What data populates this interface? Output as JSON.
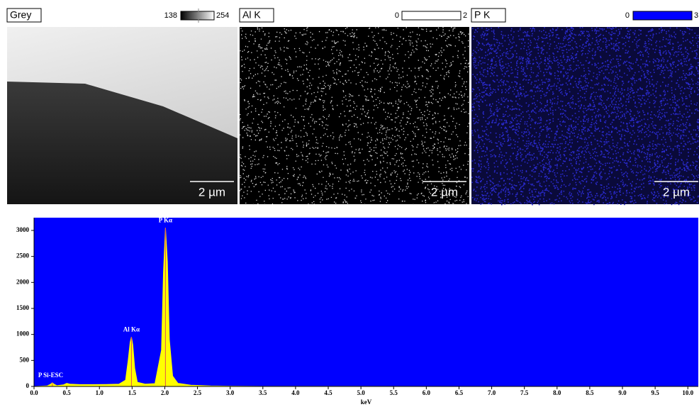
{
  "panels": [
    {
      "label": "Grey",
      "min": 138,
      "max": 254,
      "scale": "2 µm"
    },
    {
      "label": "Al K",
      "min": 0,
      "max": 2,
      "scale": "2 µm"
    },
    {
      "label": "P K",
      "min": 0,
      "max": 3,
      "scale": "2 µm"
    }
  ],
  "chart_data": {
    "type": "area",
    "color": "#ffff00",
    "background": "#0000ff",
    "x_label": "keV",
    "x": [
      0.0,
      0.1,
      0.2,
      0.25,
      0.28,
      0.31,
      0.35,
      0.45,
      0.5,
      0.55,
      0.7,
      0.9,
      1.1,
      1.3,
      1.4,
      1.44,
      1.47,
      1.49,
      1.51,
      1.54,
      1.58,
      1.7,
      1.85,
      1.95,
      1.98,
      2.01,
      2.04,
      2.07,
      2.12,
      2.2,
      2.4,
      2.7,
      3.0,
      3.5,
      9.0
    ],
    "values": [
      0,
      5,
      10,
      40,
      70,
      40,
      15,
      30,
      60,
      45,
      35,
      35,
      38,
      45,
      120,
      500,
      850,
      950,
      800,
      350,
      80,
      45,
      55,
      700,
      2200,
      3050,
      2400,
      900,
      200,
      60,
      25,
      10,
      5,
      2,
      0
    ],
    "annotations": [
      {
        "text": "P Kα",
        "x": 2.01
      },
      {
        "text": "Al Kα",
        "x": 1.49
      },
      {
        "text": "P Si-ESC",
        "x": 0.28
      }
    ],
    "xlim": [
      0,
      10.16
    ],
    "ylim": [
      0,
      3245
    ],
    "xticks": [
      {
        "value": 0,
        "label": "0.0"
      },
      0.5,
      {
        "value": 1,
        "label": "1.0"
      },
      1.5,
      {
        "value": 2,
        "label": "2.0"
      },
      2.5,
      {
        "value": 3,
        "label": "3.0"
      },
      3.5,
      {
        "value": 4,
        "label": "4.0"
      },
      4.5,
      {
        "value": 5,
        "label": "5.0"
      },
      5.5,
      {
        "value": 6,
        "label": "6.0"
      },
      6.5,
      {
        "value": 7,
        "label": "7.0"
      },
      7.5,
      {
        "value": 8,
        "label": "8.0"
      },
      8.5,
      {
        "value": 9,
        "label": "9.0"
      },
      9.5,
      {
        "value": 10,
        "label": "10.0"
      }
    ],
    "yticks": [
      0,
      500,
      1000,
      1500,
      2000,
      2500,
      3000
    ]
  }
}
